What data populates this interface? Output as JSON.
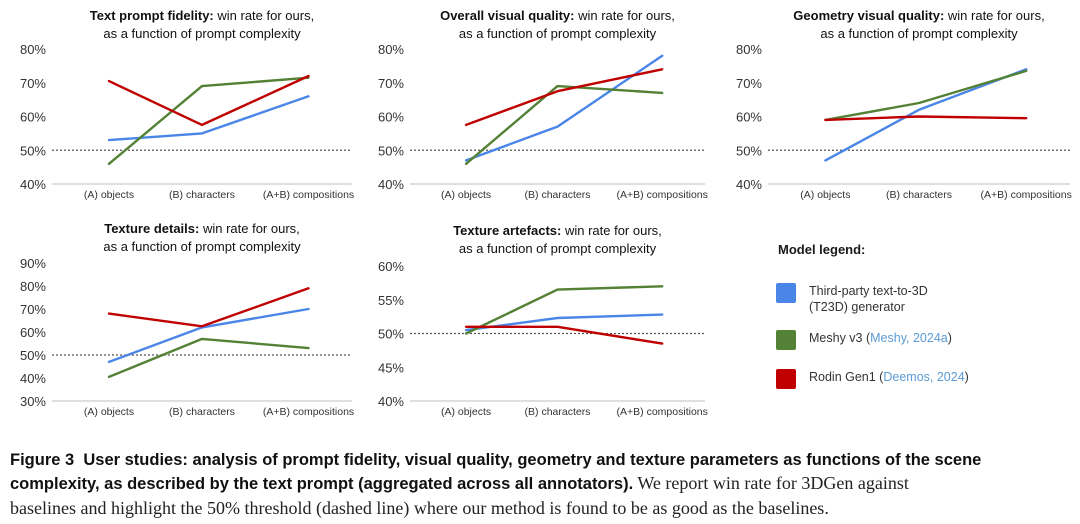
{
  "chart_data": [
    {
      "type": "line",
      "title_bold": "Text prompt fidelity:",
      "title_rest": " win rate for ours,",
      "title_line2": "as a function of prompt complexity",
      "categories": [
        "(A) objects",
        "(B) characters",
        "(A+B) compositions"
      ],
      "yticks": [
        "40%",
        "50%",
        "60%",
        "70%",
        "80%"
      ],
      "ylim": [
        40,
        80
      ],
      "threshold": 50,
      "series": [
        {
          "name": "Third-party text-to-3D (T23D) generator",
          "color": "#4a86e8",
          "values": [
            53,
            55,
            66
          ]
        },
        {
          "name": "Meshy v3",
          "color": "#538135",
          "values": [
            46,
            69,
            71.5
          ]
        },
        {
          "name": "Rodin Gen1",
          "color": "#c00000",
          "values": [
            70.5,
            57.5,
            72
          ]
        }
      ]
    },
    {
      "type": "line",
      "title_bold": "Overall visual quality:",
      "title_rest": " win rate for ours,",
      "title_line2": "as a function of prompt complexity",
      "categories": [
        "(A) objects",
        "(B) characters",
        "(A+B) compositions"
      ],
      "yticks": [
        "40%",
        "50%",
        "60%",
        "70%",
        "80%"
      ],
      "ylim": [
        40,
        80
      ],
      "threshold": 50,
      "series": [
        {
          "name": "Third-party text-to-3D (T23D) generator",
          "color": "#4a86e8",
          "values": [
            47,
            57,
            78
          ]
        },
        {
          "name": "Meshy v3",
          "color": "#538135",
          "values": [
            46,
            69,
            67
          ]
        },
        {
          "name": "Rodin Gen1",
          "color": "#c00000",
          "values": [
            57.5,
            67.5,
            74
          ]
        }
      ]
    },
    {
      "type": "line",
      "title_bold": "Geometry visual quality:",
      "title_rest": " win rate for ours,",
      "title_line2": "as a function of prompt complexity",
      "categories": [
        "(A) objects",
        "(B) characters",
        "(A+B) compositions"
      ],
      "yticks": [
        "40%",
        "50%",
        "60%",
        "70%",
        "80%"
      ],
      "ylim": [
        40,
        80
      ],
      "threshold": 50,
      "series": [
        {
          "name": "Third-party text-to-3D (T23D) generator",
          "color": "#4a86e8",
          "values": [
            47,
            62,
            74
          ]
        },
        {
          "name": "Meshy v3",
          "color": "#538135",
          "values": [
            59,
            64,
            73.5
          ]
        },
        {
          "name": "Rodin Gen1",
          "color": "#c00000",
          "values": [
            59,
            60,
            59.5
          ]
        }
      ]
    },
    {
      "type": "line",
      "title_bold": "Texture details:",
      "title_rest": " win rate for ours,",
      "title_line2": "as a function of prompt complexity",
      "categories": [
        "(A) objects",
        "(B) characters",
        "(A+B) compositions"
      ],
      "yticks": [
        "30%",
        "40%",
        "50%",
        "60%",
        "70%",
        "80%",
        "90%"
      ],
      "ylim": [
        30,
        90
      ],
      "threshold": 50,
      "series": [
        {
          "name": "Third-party text-to-3D (T23D) generator",
          "color": "#4a86e8",
          "values": [
            47,
            62,
            70
          ]
        },
        {
          "name": "Meshy v3",
          "color": "#538135",
          "values": [
            40.5,
            57,
            53
          ]
        },
        {
          "name": "Rodin Gen1",
          "color": "#c00000",
          "values": [
            68,
            62.5,
            79
          ]
        }
      ]
    },
    {
      "type": "line",
      "title_bold": "Texture artefacts:",
      "title_rest": " win rate for ours,",
      "title_line2": "as a function of prompt complexity",
      "categories": [
        "(A) objects",
        "(B) characters",
        "(A+B) compositions"
      ],
      "yticks": [
        "40%",
        "45%",
        "50%",
        "55%",
        "60%"
      ],
      "ylim": [
        40,
        60
      ],
      "threshold": 50,
      "series": [
        {
          "name": "Third-party text-to-3D (T23D) generator",
          "color": "#4a86e8",
          "values": [
            50.5,
            52.3,
            52.8
          ]
        },
        {
          "name": "Meshy v3",
          "color": "#538135",
          "values": [
            50,
            56.5,
            57
          ]
        },
        {
          "name": "Rodin Gen1",
          "color": "#c00000",
          "values": [
            51,
            51,
            48.5
          ]
        }
      ]
    }
  ],
  "legend": {
    "heading": "Model legend:",
    "items": [
      {
        "line1": "Third-party text-to-3D",
        "line2": "(T23D) generator",
        "cite": "",
        "color": "#4a86e8"
      },
      {
        "line1": "Meshy v3 (",
        "line2": "",
        "cite": "Meshy, 2024a",
        "color": "#538135"
      },
      {
        "line1": "Rodin Gen1 (",
        "line2": "",
        "cite": "Deemos, 2024",
        "color": "#c00000"
      }
    ]
  },
  "caption": {
    "label": "Figure 3",
    "bold_text": "User studies: analysis of prompt fidelity, visual quality, geometry and texture parameters as functions of the scene complexity, as described by the text prompt (aggregated across all annotators).",
    "normal_text_1": " We report win rate for 3DGen against",
    "normal_text_2": "baselines and highlight the 50% threshold (dashed line) where our method is found to be as good as the baselines."
  }
}
